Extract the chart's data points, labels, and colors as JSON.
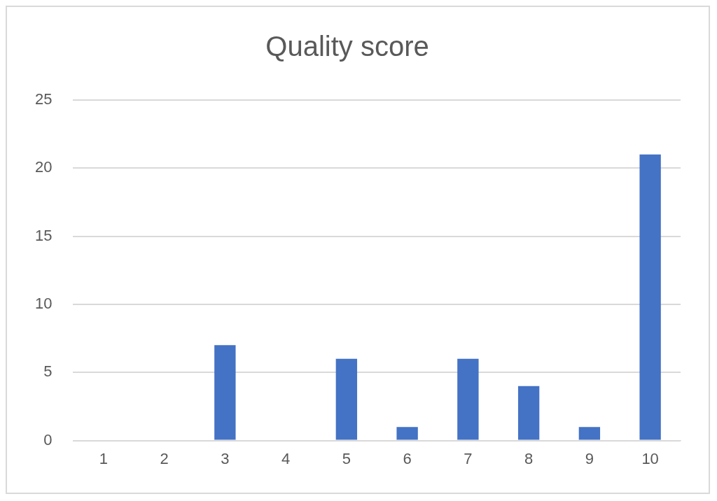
{
  "chart_data": {
    "type": "bar",
    "title": "Quality score",
    "categories": [
      "1",
      "2",
      "3",
      "4",
      "5",
      "6",
      "7",
      "8",
      "9",
      "10"
    ],
    "values": [
      0,
      0,
      7,
      0,
      6,
      1,
      6,
      4,
      1,
      21
    ],
    "color": "#4472c4",
    "ylim": [
      0,
      25
    ],
    "yticks": [
      0,
      5,
      10,
      15,
      20,
      25
    ],
    "grid": "y",
    "legend": false
  }
}
